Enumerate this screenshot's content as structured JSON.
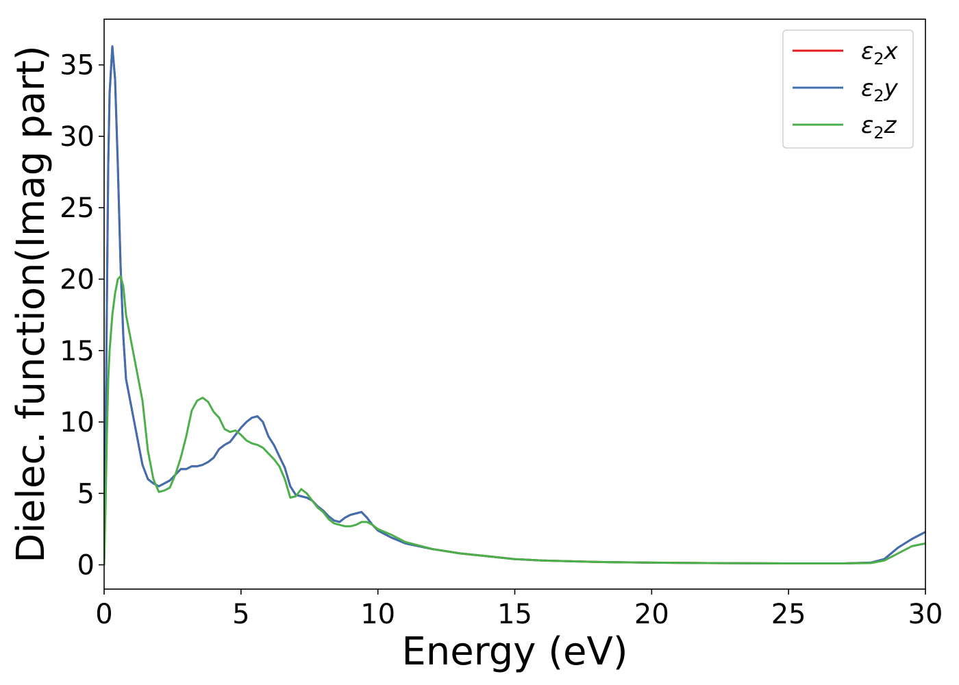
{
  "chart_data": {
    "type": "line",
    "xlabel": "Energy (eV)",
    "ylabel": "Dielec. function(Imag part)",
    "xlim": [
      0,
      30
    ],
    "ylim": [
      -1.7,
      38.2
    ],
    "xticks": [
      0,
      5,
      10,
      15,
      20,
      25,
      30
    ],
    "yticks": [
      0,
      5,
      10,
      15,
      20,
      25,
      30,
      35
    ],
    "grid": false,
    "legend_position": "top-right",
    "series": [
      {
        "name": "ε₂x",
        "legend_base": "ε",
        "legend_sub": "2",
        "legend_var": "x",
        "color": "#e41a1c",
        "x": [
          0,
          0.05,
          0.1,
          0.15,
          0.2,
          0.3,
          0.4,
          0.5,
          0.6,
          0.7,
          0.8,
          1.0,
          1.2,
          1.4,
          1.6,
          1.8,
          2.0,
          2.2,
          2.4,
          2.6,
          2.8,
          3.0,
          3.2,
          3.4,
          3.6,
          3.8,
          4.0,
          4.2,
          4.4,
          4.6,
          4.8,
          5.0,
          5.2,
          5.4,
          5.6,
          5.8,
          6.0,
          6.2,
          6.4,
          6.6,
          6.8,
          7.0,
          7.2,
          7.4,
          7.6,
          7.8,
          8.0,
          8.2,
          8.4,
          8.6,
          8.8,
          9.0,
          9.2,
          9.4,
          9.6,
          9.8,
          10.0,
          10.5,
          11.0,
          12.0,
          13.0,
          14.0,
          15.0,
          16.0,
          18.0,
          20.0,
          22.0,
          25.0,
          27.0,
          28.0,
          28.5,
          29.0,
          29.5,
          30.0
        ],
        "y": [
          0,
          8,
          18,
          28,
          33,
          36.3,
          34,
          28,
          21,
          16,
          13,
          11,
          9,
          7,
          6,
          5.7,
          5.5,
          5.7,
          5.9,
          6.3,
          6.7,
          6.7,
          6.9,
          6.9,
          7.0,
          7.2,
          7.5,
          8.1,
          8.4,
          8.6,
          9.1,
          9.6,
          10.0,
          10.3,
          10.4,
          10.0,
          9.0,
          8.4,
          7.6,
          6.8,
          5.5,
          4.9,
          4.8,
          4.7,
          4.5,
          4.1,
          3.8,
          3.4,
          3.1,
          3.0,
          3.3,
          3.5,
          3.6,
          3.7,
          3.3,
          2.8,
          2.4,
          1.9,
          1.5,
          1.1,
          0.8,
          0.6,
          0.4,
          0.3,
          0.2,
          0.15,
          0.12,
          0.1,
          0.1,
          0.15,
          0.4,
          1.2,
          1.8,
          2.3
        ]
      },
      {
        "name": "ε₂y",
        "legend_base": "ε",
        "legend_sub": "2",
        "legend_var": "y",
        "color": "#3e6fb0",
        "x": [
          0,
          0.05,
          0.1,
          0.15,
          0.2,
          0.3,
          0.4,
          0.5,
          0.6,
          0.7,
          0.8,
          1.0,
          1.2,
          1.4,
          1.6,
          1.8,
          2.0,
          2.2,
          2.4,
          2.6,
          2.8,
          3.0,
          3.2,
          3.4,
          3.6,
          3.8,
          4.0,
          4.2,
          4.4,
          4.6,
          4.8,
          5.0,
          5.2,
          5.4,
          5.6,
          5.8,
          6.0,
          6.2,
          6.4,
          6.6,
          6.8,
          7.0,
          7.2,
          7.4,
          7.6,
          7.8,
          8.0,
          8.2,
          8.4,
          8.6,
          8.8,
          9.0,
          9.2,
          9.4,
          9.6,
          9.8,
          10.0,
          10.5,
          11.0,
          12.0,
          13.0,
          14.0,
          15.0,
          16.0,
          18.0,
          20.0,
          22.0,
          25.0,
          27.0,
          28.0,
          28.5,
          29.0,
          29.5,
          30.0
        ],
        "y": [
          0,
          8,
          18,
          28,
          33,
          36.3,
          34,
          28,
          21,
          16,
          13,
          11,
          9,
          7,
          6,
          5.7,
          5.5,
          5.7,
          5.9,
          6.3,
          6.7,
          6.7,
          6.9,
          6.9,
          7.0,
          7.2,
          7.5,
          8.1,
          8.4,
          8.6,
          9.1,
          9.6,
          10.0,
          10.3,
          10.4,
          10.0,
          9.0,
          8.4,
          7.6,
          6.8,
          5.5,
          4.9,
          4.8,
          4.7,
          4.5,
          4.1,
          3.8,
          3.4,
          3.1,
          3.0,
          3.3,
          3.5,
          3.6,
          3.7,
          3.3,
          2.8,
          2.4,
          1.9,
          1.5,
          1.1,
          0.8,
          0.6,
          0.4,
          0.3,
          0.2,
          0.15,
          0.12,
          0.1,
          0.1,
          0.15,
          0.4,
          1.2,
          1.8,
          2.3
        ]
      },
      {
        "name": "ε₂z",
        "legend_base": "ε",
        "legend_sub": "2",
        "legend_var": "z",
        "color": "#4daf4a",
        "x": [
          0,
          0.05,
          0.1,
          0.15,
          0.2,
          0.3,
          0.4,
          0.5,
          0.6,
          0.7,
          0.8,
          1.0,
          1.2,
          1.4,
          1.6,
          1.8,
          2.0,
          2.2,
          2.4,
          2.6,
          2.8,
          3.0,
          3.2,
          3.4,
          3.6,
          3.8,
          4.0,
          4.2,
          4.4,
          4.6,
          4.8,
          5.0,
          5.2,
          5.4,
          5.6,
          5.8,
          6.0,
          6.2,
          6.4,
          6.6,
          6.8,
          7.0,
          7.2,
          7.4,
          7.6,
          7.8,
          8.0,
          8.2,
          8.4,
          8.6,
          8.8,
          9.0,
          9.2,
          9.4,
          9.6,
          9.8,
          10.0,
          10.5,
          11.0,
          12.0,
          13.0,
          14.0,
          15.0,
          16.0,
          18.0,
          20.0,
          22.0,
          25.0,
          27.0,
          28.0,
          28.5,
          29.0,
          29.5,
          30.0
        ],
        "y": [
          0,
          4,
          9,
          13,
          15,
          17.5,
          19,
          20,
          20.2,
          19.5,
          17.5,
          15.5,
          13.5,
          11.5,
          8,
          6,
          5.1,
          5.2,
          5.4,
          6.3,
          7.5,
          9,
          10.8,
          11.5,
          11.7,
          11.4,
          10.7,
          10.3,
          9.5,
          9.3,
          9.4,
          9.1,
          8.7,
          8.5,
          8.4,
          8.2,
          7.8,
          7.4,
          6.9,
          6.0,
          4.7,
          4.8,
          5.3,
          5.0,
          4.5,
          4.0,
          3.7,
          3.2,
          2.9,
          2.8,
          2.7,
          2.7,
          2.8,
          3.0,
          3.0,
          2.8,
          2.5,
          2.1,
          1.6,
          1.1,
          0.8,
          0.6,
          0.4,
          0.3,
          0.2,
          0.15,
          0.12,
          0.1,
          0.1,
          0.12,
          0.3,
          0.8,
          1.3,
          1.5
        ]
      }
    ]
  }
}
